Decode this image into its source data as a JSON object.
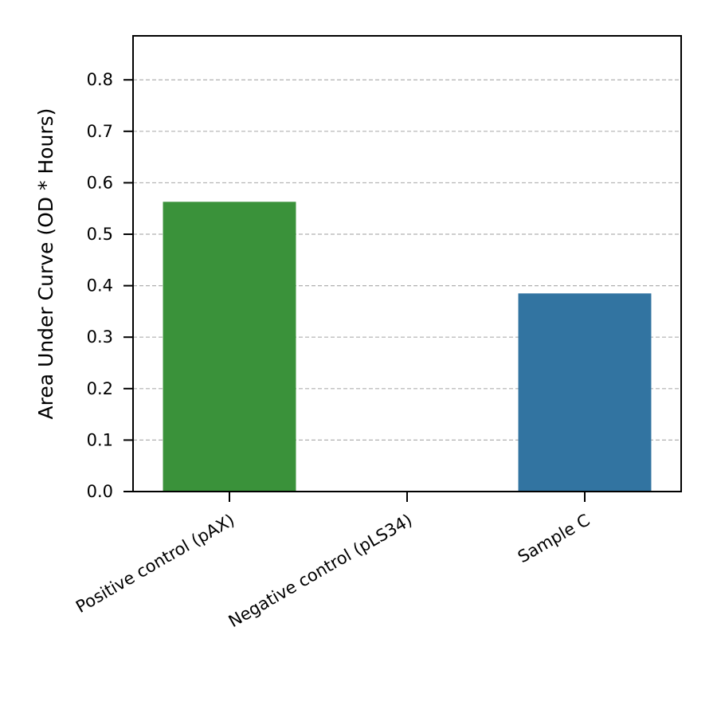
{
  "chart_data": {
    "type": "bar",
    "categories": [
      "Positive control (pAX)",
      "Negative control (pLS34)",
      "Sample C"
    ],
    "values": [
      0.563,
      0.0,
      0.385
    ],
    "colors": [
      "#3a923a",
      "#ffffff",
      "#3274a1"
    ],
    "title": "",
    "xlabel": "",
    "ylabel": "Area Under Curve (OD * Hours)",
    "ylim": [
      0.0,
      0.8855
    ],
    "yticks": [
      0.0,
      0.1,
      0.2,
      0.3,
      0.4,
      0.5,
      0.6,
      0.7,
      0.8
    ],
    "ytick_labels": [
      "0.0",
      "0.1",
      "0.2",
      "0.3",
      "0.4",
      "0.5",
      "0.6",
      "0.7",
      "0.8"
    ],
    "grid": "y-dashed",
    "legend": "none"
  }
}
